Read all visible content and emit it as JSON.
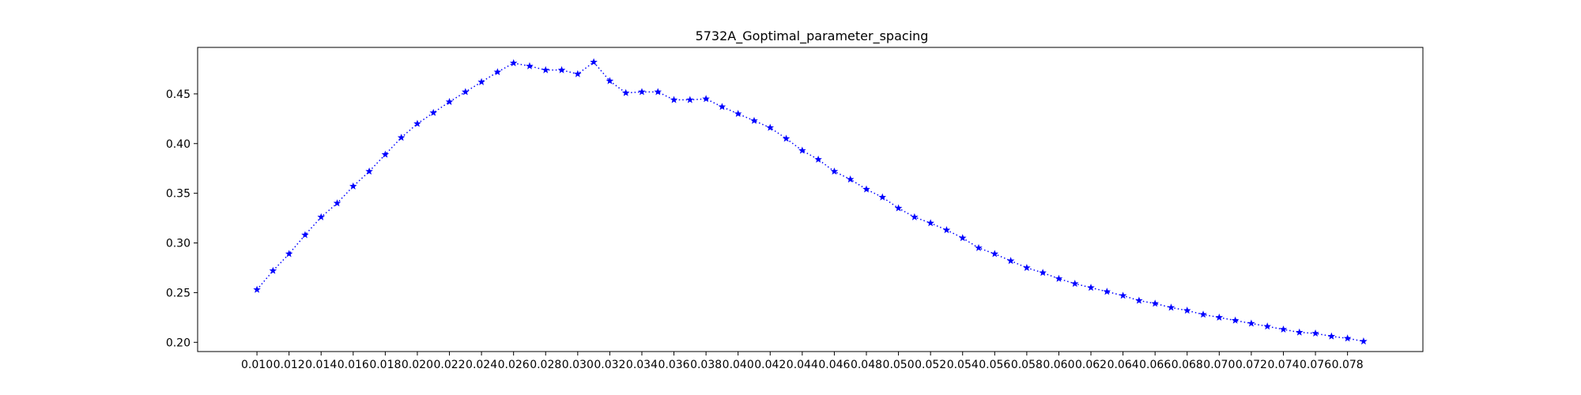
{
  "chart_data": {
    "type": "line",
    "title": "5732A_Goptimal_parameter_spacing",
    "xlabel": "",
    "ylabel": "",
    "x_ticks": [
      "0.010",
      "0.012",
      "0.014",
      "0.016",
      "0.018",
      "0.020",
      "0.022",
      "0.024",
      "0.026",
      "0.028",
      "0.030",
      "0.032",
      "0.034",
      "0.036",
      "0.038",
      "0.040",
      "0.042",
      "0.044",
      "0.046",
      "0.048",
      "0.050",
      "0.052",
      "0.054",
      "0.056",
      "0.058",
      "0.060",
      "0.062",
      "0.064",
      "0.066",
      "0.068",
      "0.070",
      "0.072",
      "0.074",
      "0.076",
      "0.078"
    ],
    "y_ticks": [
      "0.20",
      "0.25",
      "0.30",
      "0.35",
      "0.40",
      "0.45"
    ],
    "xlim": [
      0.0063,
      0.0827
    ],
    "ylim": [
      0.1907,
      0.4968
    ],
    "grid": false,
    "series": [
      {
        "color": "#0000ff",
        "line_style": "dotted",
        "marker": "star",
        "x": [
          0.01,
          0.011,
          0.012,
          0.013,
          0.014,
          0.015,
          0.016,
          0.017,
          0.018,
          0.019,
          0.02,
          0.021,
          0.022,
          0.023,
          0.024,
          0.025,
          0.026,
          0.027,
          0.028,
          0.029,
          0.03,
          0.031,
          0.032,
          0.033,
          0.034,
          0.035,
          0.036,
          0.037,
          0.038,
          0.039,
          0.04,
          0.041,
          0.042,
          0.043,
          0.044,
          0.045,
          0.046,
          0.047,
          0.048,
          0.049,
          0.05,
          0.051,
          0.052,
          0.053,
          0.054,
          0.055,
          0.056,
          0.057,
          0.058,
          0.059,
          0.06,
          0.061,
          0.062,
          0.063,
          0.064,
          0.065,
          0.066,
          0.067,
          0.068,
          0.069,
          0.07,
          0.071,
          0.072,
          0.073,
          0.074,
          0.075,
          0.076,
          0.077,
          0.078,
          0.079
        ],
        "y": [
          0.253,
          0.272,
          0.289,
          0.308,
          0.326,
          0.34,
          0.357,
          0.372,
          0.389,
          0.406,
          0.42,
          0.431,
          0.442,
          0.452,
          0.462,
          0.472,
          0.481,
          0.478,
          0.474,
          0.474,
          0.47,
          0.482,
          0.463,
          0.451,
          0.452,
          0.452,
          0.444,
          0.444,
          0.445,
          0.437,
          0.43,
          0.423,
          0.416,
          0.405,
          0.393,
          0.384,
          0.372,
          0.364,
          0.354,
          0.346,
          0.335,
          0.326,
          0.32,
          0.313,
          0.305,
          0.295,
          0.289,
          0.282,
          0.275,
          0.27,
          0.264,
          0.259,
          0.255,
          0.251,
          0.247,
          0.242,
          0.239,
          0.235,
          0.232,
          0.228,
          0.225,
          0.222,
          0.219,
          0.216,
          0.213,
          0.21,
          0.209,
          0.206,
          0.204,
          0.201
        ]
      }
    ]
  }
}
